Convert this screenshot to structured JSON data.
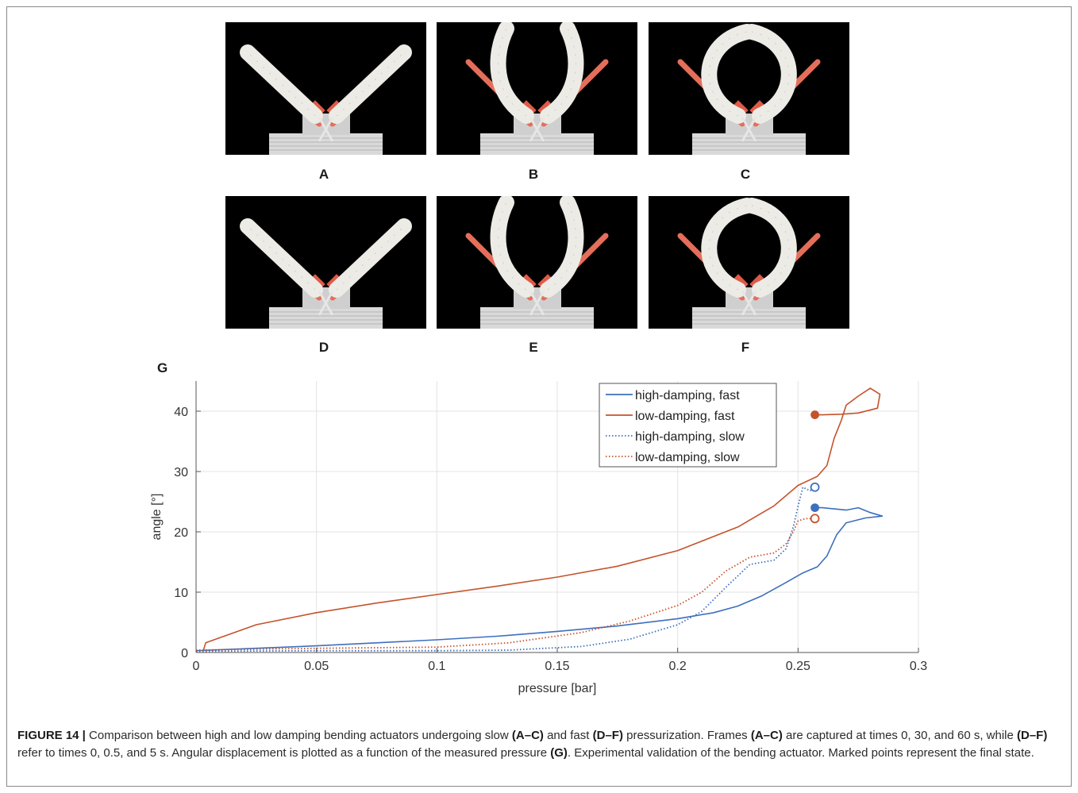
{
  "panels": [
    {
      "id": "A",
      "label": "A",
      "shape": "open"
    },
    {
      "id": "B",
      "label": "B",
      "shape": "mid"
    },
    {
      "id": "C",
      "label": "C",
      "shape": "closed"
    },
    {
      "id": "D",
      "label": "D",
      "shape": "open"
    },
    {
      "id": "E",
      "label": "E",
      "shape": "mid"
    },
    {
      "id": "F",
      "label": "F",
      "shape": "closed"
    }
  ],
  "chart_label": "G",
  "chart_data": {
    "type": "line",
    "title": "",
    "xlabel": "pressure [bar]",
    "ylabel": "angle [°]",
    "xlim": [
      0,
      0.3
    ],
    "ylim": [
      0,
      45
    ],
    "xticks": [
      0,
      0.05,
      0.1,
      0.15,
      0.2,
      0.25,
      0.3
    ],
    "xtick_labels": [
      "0",
      "0.05",
      "0.1",
      "0.15",
      "0.2",
      "0.25",
      "0.3"
    ],
    "yticks": [
      0,
      10,
      20,
      30,
      40
    ],
    "ytick_labels": [
      "0",
      "10",
      "20",
      "30",
      "40"
    ],
    "grid": true,
    "legend": "top-right",
    "series": [
      {
        "name": "high-damping, fast",
        "color": "#3d6fbd",
        "dash": "solid",
        "points": [
          [
            0,
            0.3
          ],
          [
            0.025,
            0.7
          ],
          [
            0.05,
            1.1
          ],
          [
            0.075,
            1.6
          ],
          [
            0.1,
            2.1
          ],
          [
            0.125,
            2.7
          ],
          [
            0.15,
            3.5
          ],
          [
            0.175,
            4.4
          ],
          [
            0.2,
            5.6
          ],
          [
            0.215,
            6.6
          ],
          [
            0.225,
            7.7
          ],
          [
            0.235,
            9.4
          ],
          [
            0.245,
            11.6
          ],
          [
            0.252,
            13.2
          ],
          [
            0.258,
            14.2
          ],
          [
            0.262,
            16
          ],
          [
            0.266,
            19.5
          ],
          [
            0.27,
            21.5
          ],
          [
            0.278,
            22.3
          ],
          [
            0.285,
            22.6
          ],
          [
            0.28,
            23.2
          ],
          [
            0.275,
            24
          ],
          [
            0.27,
            23.6
          ],
          [
            0.265,
            23.8
          ],
          [
            0.26,
            24
          ],
          [
            0.257,
            24
          ]
        ],
        "end": [
          0.257,
          24
        ],
        "end_marker": "filled"
      },
      {
        "name": "low-damping, fast",
        "color": "#c4532b",
        "dash": "solid",
        "points": [
          [
            0.003,
            0.3
          ],
          [
            0.004,
            1.6
          ],
          [
            0.025,
            4.6
          ],
          [
            0.05,
            6.6
          ],
          [
            0.075,
            8.2
          ],
          [
            0.1,
            9.6
          ],
          [
            0.125,
            11.0
          ],
          [
            0.15,
            12.5
          ],
          [
            0.175,
            14.3
          ],
          [
            0.2,
            16.9
          ],
          [
            0.225,
            20.8
          ],
          [
            0.24,
            24.3
          ],
          [
            0.25,
            27.7
          ],
          [
            0.258,
            29.2
          ],
          [
            0.262,
            31
          ],
          [
            0.265,
            35.5
          ],
          [
            0.268,
            38.5
          ],
          [
            0.27,
            41
          ],
          [
            0.275,
            42.5
          ],
          [
            0.28,
            43.8
          ],
          [
            0.284,
            42.8
          ],
          [
            0.283,
            40.5
          ],
          [
            0.275,
            39.7
          ],
          [
            0.268,
            39.5
          ],
          [
            0.26,
            39.4
          ],
          [
            0.257,
            39.4
          ]
        ],
        "end": [
          0.257,
          39.4
        ],
        "end_marker": "filled"
      },
      {
        "name": "high-damping, slow",
        "color": "#3d6fbd",
        "dash": "dotted",
        "points": [
          [
            0,
            0.2
          ],
          [
            0.05,
            0.3
          ],
          [
            0.1,
            0.3
          ],
          [
            0.13,
            0.4
          ],
          [
            0.16,
            1.0
          ],
          [
            0.18,
            2.2
          ],
          [
            0.2,
            4.6
          ],
          [
            0.21,
            6.8
          ],
          [
            0.22,
            10.8
          ],
          [
            0.23,
            14.6
          ],
          [
            0.24,
            15.3
          ],
          [
            0.245,
            17.2
          ],
          [
            0.248,
            20.8
          ],
          [
            0.25,
            24.2
          ],
          [
            0.252,
            27.4
          ],
          [
            0.255,
            26.8
          ],
          [
            0.257,
            27.4
          ]
        ],
        "end": [
          0.257,
          27.4
        ],
        "end_marker": "open"
      },
      {
        "name": "low-damping, slow",
        "color": "#c4532b",
        "dash": "dotted",
        "points": [
          [
            0,
            0.4
          ],
          [
            0.05,
            0.7
          ],
          [
            0.1,
            0.9
          ],
          [
            0.13,
            1.6
          ],
          [
            0.16,
            3.3
          ],
          [
            0.18,
            5.2
          ],
          [
            0.2,
            7.8
          ],
          [
            0.21,
            10.0
          ],
          [
            0.22,
            13.5
          ],
          [
            0.23,
            15.8
          ],
          [
            0.24,
            16.5
          ],
          [
            0.245,
            18.0
          ],
          [
            0.248,
            20.0
          ],
          [
            0.25,
            21.8
          ],
          [
            0.253,
            22.2
          ],
          [
            0.257,
            22.2
          ]
        ],
        "end": [
          0.257,
          22.2
        ],
        "end_marker": "open"
      }
    ]
  },
  "caption": {
    "title": "FIGURE 14 |",
    "parts": [
      {
        "t": " Comparison between high and low damping bending actuators undergoing slow ",
        "b": false
      },
      {
        "t": "(A–C)",
        "b": true
      },
      {
        "t": " and fast ",
        "b": false
      },
      {
        "t": "(D–F)",
        "b": true
      },
      {
        "t": " pressurization. Frames ",
        "b": false
      },
      {
        "t": "(A–C)",
        "b": true
      },
      {
        "t": " are captured at times 0, 30, and 60 s, while ",
        "b": false
      },
      {
        "t": "(D–F)",
        "b": true
      },
      {
        "t": " refer to times 0, 0.5, and 5 s. Angular displacement is plotted as a function of the measured pressure ",
        "b": false
      },
      {
        "t": "(G)",
        "b": true
      },
      {
        "t": ". Experimental validation of the bending actuator. Marked points represent the final state.",
        "b": false
      }
    ]
  }
}
